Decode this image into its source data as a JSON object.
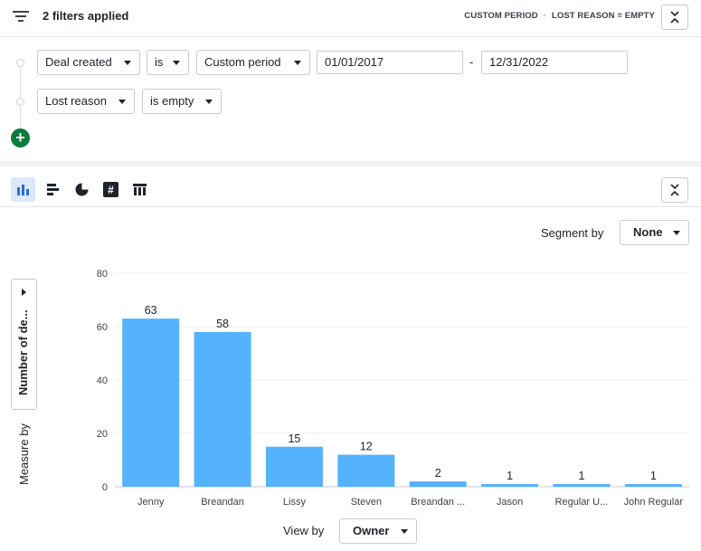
{
  "header": {
    "title": "2 filters applied",
    "summary_period": "CUSTOM PERIOD",
    "summary_separator": "·",
    "summary_lost": "LOST REASON = EMPTY"
  },
  "filters": {
    "row1": {
      "field": "Deal created",
      "operator": "is",
      "period": "Custom period",
      "from": "01/01/2017",
      "dash": "-",
      "to": "12/31/2022"
    },
    "row2": {
      "field": "Lost reason",
      "operator": "is empty"
    },
    "add_label": "+"
  },
  "toolbar": {
    "tools": [
      "bar-chart-icon",
      "horizontal-bar-icon",
      "pie-chart-icon",
      "number-icon",
      "table-icon"
    ],
    "active": "bar-chart-icon"
  },
  "segment": {
    "label": "Segment by",
    "value": "None"
  },
  "measure": {
    "value": "Number of de...",
    "label": "Measure by"
  },
  "view": {
    "label": "View by",
    "value": "Owner"
  },
  "colors": {
    "bar": "#55b2fd",
    "add": "#0b7a3b",
    "active_tool": "#dbe9fb"
  },
  "chart_data": {
    "type": "bar",
    "categories": [
      "Jenny",
      "Breandan",
      "Lissy",
      "Steven",
      "Breandan ...",
      "Jason",
      "Regular U...",
      "John Regular"
    ],
    "values": [
      63,
      58,
      15,
      12,
      2,
      1,
      1,
      1
    ],
    "data_labels": [
      "63",
      "58",
      "15",
      "12",
      "2",
      "1",
      "1",
      "1"
    ],
    "ylim": [
      0,
      80
    ],
    "yticks": [
      0,
      20,
      40,
      60,
      80
    ],
    "grid": true,
    "title": "",
    "xlabel": "",
    "ylabel": ""
  }
}
